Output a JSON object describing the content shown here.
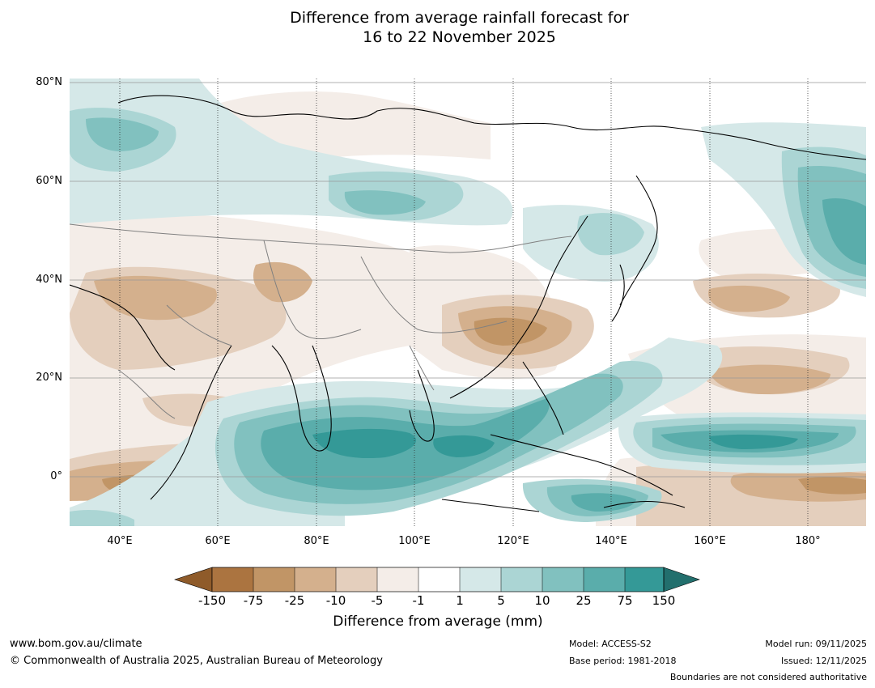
{
  "title": {
    "line1": "Difference from average rainfall forecast for",
    "line2": "16 to 22 November 2025"
  },
  "map": {
    "lat_labels": [
      "80°N",
      "60°N",
      "40°N",
      "20°N",
      "0°"
    ],
    "lon_labels": [
      "40°E",
      "60°E",
      "80°E",
      "100°E",
      "120°E",
      "140°E",
      "160°E",
      "180°"
    ],
    "lon_range_deg": [
      30,
      192
    ],
    "lat_range_deg": [
      -10,
      81
    ]
  },
  "colorbar": {
    "tick_labels": [
      "-150",
      "-75",
      "-25",
      "-10",
      "-5",
      "-1",
      "1",
      "5",
      "10",
      "25",
      "75",
      "150"
    ],
    "colors": [
      "#ab7440",
      "#c19566",
      "#d4b08d",
      "#e4cfbd",
      "#f4ede8",
      "#ffffff",
      "#d5e8e8",
      "#abd5d4",
      "#81c1bf",
      "#5aadab",
      "#349997"
    ],
    "under_color": "#8f5b2a",
    "over_color": "#226f6d",
    "label": "Difference from average (mm)"
  },
  "footer": {
    "website": "www.bom.gov.au/climate",
    "copyright": "© Commonwealth of Australia 2025, Australian Bureau of Meteorology",
    "model": "Model: ACCESS-S2",
    "base_period": "Base period: 1981-2018",
    "model_run": "Model run: 09/11/2025",
    "issued": "Issued: 12/11/2025",
    "disclaimer": "Boundaries are not considered authoritative"
  }
}
